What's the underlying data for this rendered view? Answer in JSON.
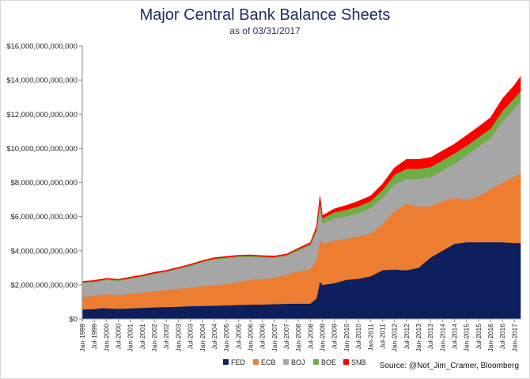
{
  "chart_data": {
    "type": "area",
    "stacked": true,
    "title": "Major Central Bank Balance Sheets",
    "subtitle": "as of 03/31/2017",
    "source": "Source: @Not_Jim_Cramer, Bloomberg",
    "ylim": [
      0,
      16000000000000
    ],
    "yticks": [
      0,
      2000000000000,
      4000000000000,
      6000000000000,
      8000000000000,
      10000000000000,
      12000000000000,
      14000000000000,
      16000000000000
    ],
    "ytick_labels": [
      "$0",
      "$2,000,000,000,000",
      "$4,000,000,000,000",
      "$6,000,000,000,000",
      "$8,000,000,000,000",
      "$10,000,000,000,000",
      "$12,000,000,000,000",
      "$14,000,000,000,000",
      "$16,000,000,000,000"
    ],
    "xtick_labels": [
      "Jan-1999",
      "Jul-1999",
      "Jan-2000",
      "Jul-2000",
      "Jan-2001",
      "Jul-2001",
      "Jan-2002",
      "Jul-2002",
      "Jan-2003",
      "Jul-2003",
      "Jan-2004",
      "Jul-2004",
      "Jan-2005",
      "Jul-2005",
      "Jan-2006",
      "Jul-2006",
      "Jan-2007",
      "Jul-2007",
      "Jan-2008",
      "Jul-2008",
      "Jan-2009",
      "Jul-2009",
      "Jan-2010",
      "Jul-2010",
      "Jan-2011",
      "Jul-2011",
      "Jan-2012",
      "Jul-2012",
      "Jan-2013",
      "Jul-2013",
      "Jan-2014",
      "Jul-2014",
      "Jan-2015",
      "Jul-2015",
      "Jan-2016",
      "Jul-2016",
      "Jan-2017"
    ],
    "x": [
      1999.0,
      1999.5,
      1999.9,
      2000.0,
      2000.5,
      2001.0,
      2001.5,
      2002.0,
      2002.5,
      2003.0,
      2003.5,
      2004.0,
      2004.5,
      2005.0,
      2005.5,
      2006.0,
      2006.5,
      2007.0,
      2007.5,
      2008.0,
      2008.5,
      2008.75,
      2008.9,
      2009.0,
      2009.5,
      2010.0,
      2010.5,
      2011.0,
      2011.5,
      2012.0,
      2012.5,
      2013.0,
      2013.5,
      2014.0,
      2014.5,
      2015.0,
      2015.5,
      2016.0,
      2016.5,
      2017.0,
      2017.25
    ],
    "series": [
      {
        "name": "FED",
        "color": "#0d1f5c",
        "values": [
          0.55,
          0.58,
          0.65,
          0.62,
          0.6,
          0.62,
          0.65,
          0.68,
          0.7,
          0.72,
          0.75,
          0.77,
          0.78,
          0.8,
          0.82,
          0.84,
          0.85,
          0.87,
          0.89,
          0.9,
          0.9,
          1.2,
          2.2,
          2.0,
          2.1,
          2.3,
          2.35,
          2.5,
          2.85,
          2.9,
          2.85,
          3.0,
          3.6,
          4.0,
          4.4,
          4.5,
          4.5,
          4.5,
          4.5,
          4.45,
          4.45
        ]
      },
      {
        "name": "ECB",
        "color": "#ed7d31",
        "values": [
          0.75,
          0.78,
          0.8,
          0.82,
          0.8,
          0.85,
          0.9,
          0.95,
          1.0,
          1.05,
          1.1,
          1.15,
          1.2,
          1.25,
          1.35,
          1.45,
          1.5,
          1.55,
          1.7,
          1.9,
          2.0,
          2.3,
          2.5,
          2.4,
          2.5,
          2.4,
          2.5,
          2.5,
          2.7,
          3.4,
          3.9,
          3.6,
          3.0,
          2.9,
          2.7,
          2.5,
          2.7,
          3.1,
          3.5,
          3.9,
          4.1
        ]
      },
      {
        "name": "BOJ",
        "color": "#a6a6a6",
        "values": [
          0.8,
          0.8,
          0.8,
          0.85,
          0.82,
          0.88,
          0.92,
          1.0,
          1.05,
          1.15,
          1.25,
          1.4,
          1.5,
          1.5,
          1.45,
          1.35,
          1.25,
          1.15,
          1.1,
          1.2,
          1.4,
          1.6,
          1.9,
          1.2,
          1.3,
          1.3,
          1.35,
          1.5,
          1.55,
          1.6,
          1.45,
          1.6,
          1.7,
          1.8,
          2.0,
          2.6,
          2.9,
          3.0,
          3.6,
          4.0,
          4.2
        ]
      },
      {
        "name": "BOE",
        "color": "#70ad47",
        "values": [
          0.05,
          0.05,
          0.05,
          0.05,
          0.05,
          0.05,
          0.05,
          0.05,
          0.05,
          0.05,
          0.05,
          0.05,
          0.06,
          0.06,
          0.06,
          0.06,
          0.06,
          0.06,
          0.06,
          0.08,
          0.1,
          0.15,
          0.3,
          0.3,
          0.35,
          0.4,
          0.4,
          0.4,
          0.45,
          0.55,
          0.6,
          0.6,
          0.6,
          0.6,
          0.6,
          0.55,
          0.55,
          0.55,
          0.6,
          0.6,
          0.6
        ]
      },
      {
        "name": "SNB",
        "color": "#ff0000",
        "values": [
          0.05,
          0.05,
          0.05,
          0.05,
          0.05,
          0.05,
          0.05,
          0.05,
          0.05,
          0.05,
          0.05,
          0.05,
          0.05,
          0.05,
          0.05,
          0.05,
          0.05,
          0.05,
          0.05,
          0.06,
          0.08,
          0.15,
          0.3,
          0.15,
          0.2,
          0.25,
          0.3,
          0.3,
          0.35,
          0.4,
          0.55,
          0.55,
          0.55,
          0.55,
          0.55,
          0.6,
          0.6,
          0.65,
          0.7,
          0.75,
          0.85
        ]
      }
    ],
    "value_scale_note": "values in trillions of US dollars",
    "legend_position": "bottom",
    "grid": false
  }
}
